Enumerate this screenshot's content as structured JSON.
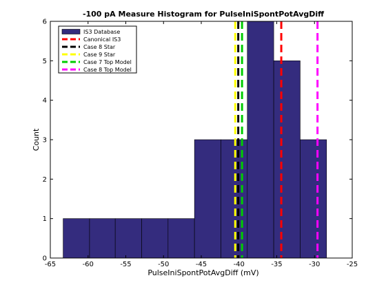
{
  "chart_data": {
    "type": "bar",
    "title": "-100 pA Measure Histogram for PulseIniSpontPotAvgDiff",
    "xlabel": "PulseIniSpontPotAvgDiff (mV)",
    "ylabel": "Count",
    "xlim": [
      -65,
      -25
    ],
    "ylim": [
      0,
      6
    ],
    "xticks": [
      -65,
      -60,
      -55,
      -50,
      -45,
      -40,
      -35,
      -30,
      -25
    ],
    "yticks": [
      0,
      1,
      2,
      3,
      4,
      5,
      6
    ],
    "grid": false,
    "legend_position": "top-left",
    "histogram": {
      "name": "IS3 Database",
      "color": "#342c7e",
      "bins": [
        {
          "x0": -63.3,
          "x1": -59.8,
          "count": 1
        },
        {
          "x0": -59.8,
          "x1": -56.4,
          "count": 1
        },
        {
          "x0": -56.4,
          "x1": -52.9,
          "count": 1
        },
        {
          "x0": -52.9,
          "x1": -49.4,
          "count": 1
        },
        {
          "x0": -49.4,
          "x1": -45.9,
          "count": 1
        },
        {
          "x0": -45.9,
          "x1": -42.4,
          "count": 3
        },
        {
          "x0": -42.4,
          "x1": -38.9,
          "count": 3
        },
        {
          "x0": -38.9,
          "x1": -35.4,
          "count": 6
        },
        {
          "x0": -35.4,
          "x1": -31.9,
          "count": 5
        },
        {
          "x0": -31.9,
          "x1": -28.4,
          "count": 3
        }
      ]
    },
    "reference_lines": [
      {
        "name": "Canonical IS3",
        "x": -34.4,
        "color": "#ff0000"
      },
      {
        "name": "Case 8 Star",
        "x": -40.1,
        "color": "#000000"
      },
      {
        "name": "Case 9 Star",
        "x": -40.5,
        "color": "#ffff00"
      },
      {
        "name": "Case 7 Top Model",
        "x": -39.6,
        "color": "#00cc00"
      },
      {
        "name": "Case 8 Top Model",
        "x": -29.6,
        "color": "#ff00ff"
      }
    ]
  }
}
